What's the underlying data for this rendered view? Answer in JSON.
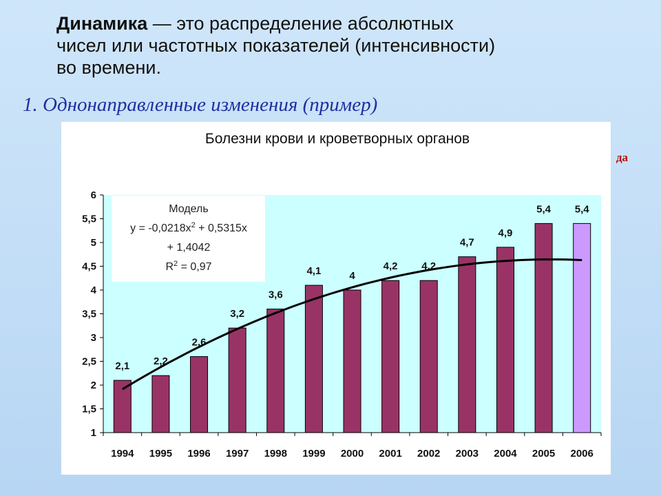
{
  "intro": {
    "term": "Динамика",
    "rest_line1": " — это распределение абсолютных",
    "line2": "чисел или частотных показателей (интенсивности)",
    "line3": "во времени."
  },
  "subtitle": "1. Однонаправленные изменения (пример)",
  "clipped_text": "да",
  "chart_data": {
    "type": "bar",
    "title": "Болезни крови и кроветворных органов",
    "categories": [
      "1994",
      "1995",
      "1996",
      "1997",
      "1998",
      "1999",
      "2000",
      "2001",
      "2002",
      "2003",
      "2004",
      "2005",
      "2006"
    ],
    "values": [
      2.1,
      2.2,
      2.6,
      3.2,
      3.6,
      4.1,
      4.0,
      4.2,
      4.2,
      4.7,
      4.9,
      5.4,
      5.4
    ],
    "data_labels": [
      "2,1",
      "2,2",
      "2,6",
      "3,2",
      "3,6",
      "4,1",
      "4",
      "4,2",
      "4,2",
      "4,7",
      "4,9",
      "5,4",
      "5,4"
    ],
    "ylim": [
      1,
      6
    ],
    "yticks": [
      "1",
      "1,5",
      "2",
      "2,5",
      "3",
      "3,5",
      "4",
      "4,5",
      "5",
      "5,5",
      "6"
    ],
    "ytick_values": [
      1,
      1.5,
      2,
      2.5,
      3,
      3.5,
      4,
      4.5,
      5,
      5.5,
      6
    ],
    "grid": false,
    "bar_color": "#993366",
    "highlight_bar_color": "#cc99ff",
    "highlight_index": 12,
    "plot_background": "#ccffff",
    "trendline": {
      "type": "polynomial",
      "coefficients": [
        -0.0218,
        0.5315,
        1.4042
      ],
      "color": "#000000"
    },
    "model_box": {
      "line1": "Модель",
      "line2a": "y = -0,0218x",
      "line2b": "2",
      "line2c": " + 0,5315x",
      "line3": "+ 1,4042",
      "line4a": "R",
      "line4b": "2",
      "line4c": " = 0,97"
    }
  }
}
